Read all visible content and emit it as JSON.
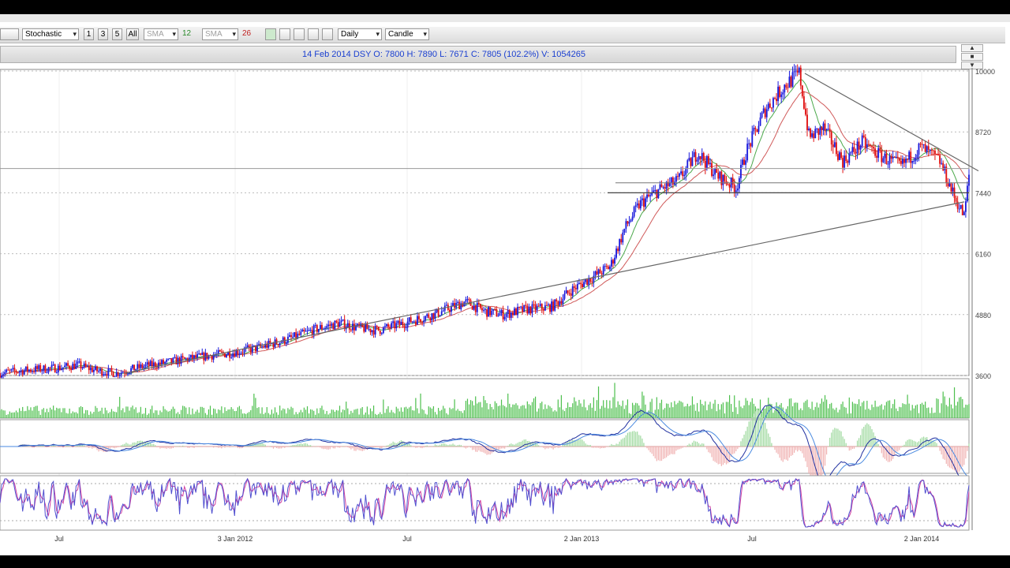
{
  "toolbar": {
    "indicator_select": "Stochastic",
    "period_buttons": [
      "1",
      "3",
      "5",
      "All"
    ],
    "ma1_type": "SMA",
    "ma1_period": "12",
    "ma2_type": "SMA",
    "ma2_period": "26",
    "interval_select": "Daily",
    "chart_type_select": "Candle"
  },
  "info": {
    "quote": "14 Feb 2014  DSY   O: 7800   H: 7890   L: 7671   C: 7805 (102.2%)   V: 1054265"
  },
  "colors": {
    "bull": "#1a1adc",
    "bear": "#e01010",
    "ma_fast": "#4aa84a",
    "ma_slow": "#d05a5a",
    "volume": "#4cbf4c",
    "macd": "#2030a0",
    "macd_signal": "#4a8ae0",
    "stoch_k": "#5050d0",
    "stoch_d": "#d040a0"
  },
  "chart_data": {
    "type": "candlestick",
    "price_axis": {
      "ticks": [
        "10000",
        "8720",
        "7440",
        "6160",
        "4880",
        "3600"
      ],
      "range": [
        3600,
        10000
      ]
    },
    "date_axis": {
      "labels": [
        "Jul",
        "3 Jan 2012",
        "Jul",
        "2 Jan 2013",
        "Jul",
        "2 Jan 2014"
      ]
    },
    "price_path": [
      [
        0,
        3650
      ],
      [
        0.03,
        3720
      ],
      [
        0.06,
        3760
      ],
      [
        0.08,
        3820
      ],
      [
        0.1,
        3700
      ],
      [
        0.12,
        3650
      ],
      [
        0.15,
        3800
      ],
      [
        0.18,
        3900
      ],
      [
        0.21,
        4000
      ],
      [
        0.24,
        4080
      ],
      [
        0.27,
        4200
      ],
      [
        0.3,
        4380
      ],
      [
        0.33,
        4600
      ],
      [
        0.35,
        4700
      ],
      [
        0.37,
        4600
      ],
      [
        0.39,
        4550
      ],
      [
        0.42,
        4720
      ],
      [
        0.45,
        4900
      ],
      [
        0.48,
        5150
      ],
      [
        0.5,
        4950
      ],
      [
        0.52,
        4880
      ],
      [
        0.54,
        4980
      ],
      [
        0.57,
        5050
      ],
      [
        0.59,
        5400
      ],
      [
        0.61,
        5650
      ],
      [
        0.63,
        5900
      ],
      [
        0.645,
        6700
      ],
      [
        0.66,
        7200
      ],
      [
        0.68,
        7500
      ],
      [
        0.7,
        7700
      ],
      [
        0.72,
        8300
      ],
      [
        0.74,
        7800
      ],
      [
        0.76,
        7550
      ],
      [
        0.77,
        8300
      ],
      [
        0.79,
        9200
      ],
      [
        0.81,
        9700
      ],
      [
        0.825,
        9950
      ],
      [
        0.835,
        8600
      ],
      [
        0.85,
        8800
      ],
      [
        0.87,
        8100
      ],
      [
        0.89,
        8500
      ],
      [
        0.91,
        8200
      ],
      [
        0.93,
        8000
      ],
      [
        0.95,
        8400
      ],
      [
        0.97,
        8100
      ],
      [
        0.985,
        7350
      ],
      [
        0.995,
        6950
      ],
      [
        1.0,
        7800
      ]
    ],
    "annotations": [
      {
        "type": "trendline",
        "from": [
          "2011-09",
          3650
        ],
        "to": [
          "2014-02",
          7250
        ]
      },
      {
        "type": "trendline",
        "from": [
          "2013-08",
          9950
        ],
        "to": [
          "2014-02",
          7950
        ]
      },
      {
        "type": "horizontal",
        "value": 7440
      },
      {
        "type": "horizontal",
        "value": 7650
      },
      {
        "type": "horizontal",
        "value": 7950
      }
    ],
    "panels": [
      "price",
      "volume",
      "macd",
      "stochastic"
    ],
    "grid": true
  }
}
